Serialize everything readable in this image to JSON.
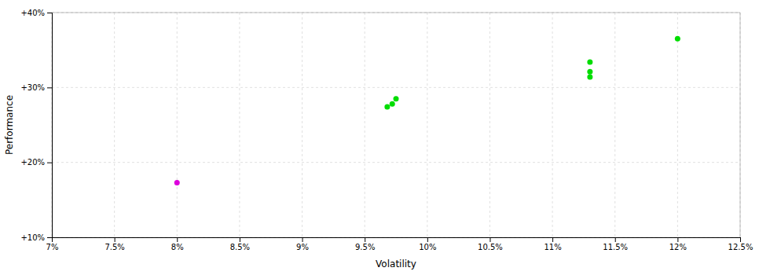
{
  "chart_data": {
    "type": "scatter",
    "xlabel": "Volatility",
    "ylabel": "Performance",
    "xlim": [
      0.07,
      0.125
    ],
    "ylim": [
      0.1,
      0.4
    ],
    "xticks": [
      {
        "value": 0.07,
        "label": "7%"
      },
      {
        "value": 0.075,
        "label": "7.5%"
      },
      {
        "value": 0.08,
        "label": "8%"
      },
      {
        "value": 0.085,
        "label": "8.5%"
      },
      {
        "value": 0.09,
        "label": "9%"
      },
      {
        "value": 0.095,
        "label": "9.5%"
      },
      {
        "value": 0.1,
        "label": "10%"
      },
      {
        "value": 0.105,
        "label": "10.5%"
      },
      {
        "value": 0.11,
        "label": "11%"
      },
      {
        "value": 0.115,
        "label": "11.5%"
      },
      {
        "value": 0.12,
        "label": "12%"
      },
      {
        "value": 0.125,
        "label": "12.5%"
      }
    ],
    "yticks": [
      {
        "value": 0.1,
        "label": "+10%"
      },
      {
        "value": 0.2,
        "label": "+20%"
      },
      {
        "value": 0.3,
        "label": "+30%"
      },
      {
        "value": 0.4,
        "label": "+40%"
      }
    ],
    "grid": true,
    "series": [
      {
        "color": "#00dd00",
        "x": [
          0.0975,
          0.0972,
          0.0968,
          0.113,
          0.113,
          0.113,
          0.12
        ],
        "values": [
          0.285,
          0.278,
          0.274,
          0.334,
          0.321,
          0.314,
          0.365
        ]
      },
      {
        "color": "#dd00dd",
        "x": [
          0.08
        ],
        "values": [
          0.173
        ]
      }
    ]
  }
}
